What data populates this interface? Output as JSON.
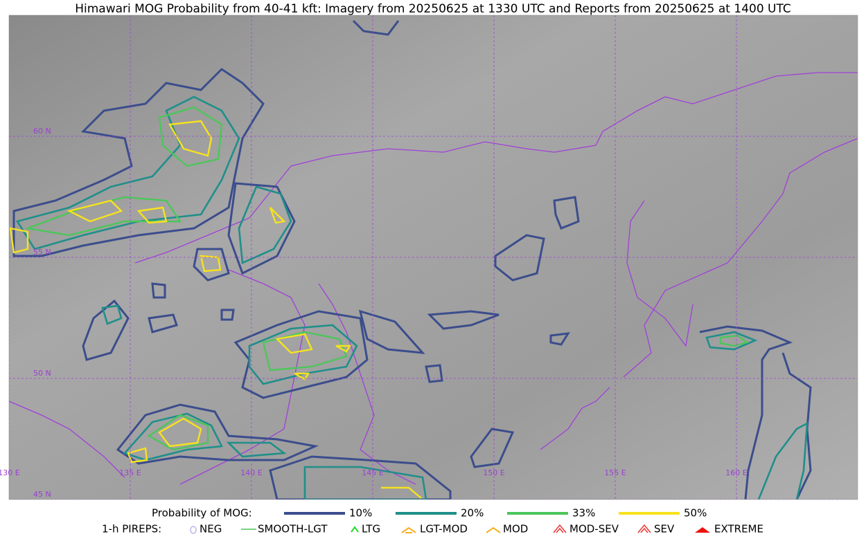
{
  "title": "Himawari MOG Probability from 40-41 kft: Imagery from 20250625 at 1330 UTC and Reports from 20250625 at 1400 UTC",
  "map": {
    "latitude_labels": [
      "60 N",
      "55 N",
      "50 N",
      "45 N"
    ],
    "longitude_labels": [
      "130 E",
      "135 E",
      "140 E",
      "145 E",
      "150 E",
      "155 E",
      "160 E"
    ]
  },
  "legend": {
    "probability": {
      "title": "Probability of MOG:",
      "items": [
        {
          "label": "10%",
          "color": "#3b4d8c"
        },
        {
          "label": "20%",
          "color": "#1f8f8a"
        },
        {
          "label": "33%",
          "color": "#4cc65a"
        },
        {
          "label": "50%",
          "color": "#f7e21e"
        }
      ]
    },
    "pireps": {
      "title": "1-h PIREPS:",
      "items": [
        "NEG",
        "SMOOTH-LGT",
        "LTG",
        "LGT-MOD",
        "MOD",
        "MOD-SEV",
        "SEV",
        "EXTREME"
      ]
    }
  }
}
